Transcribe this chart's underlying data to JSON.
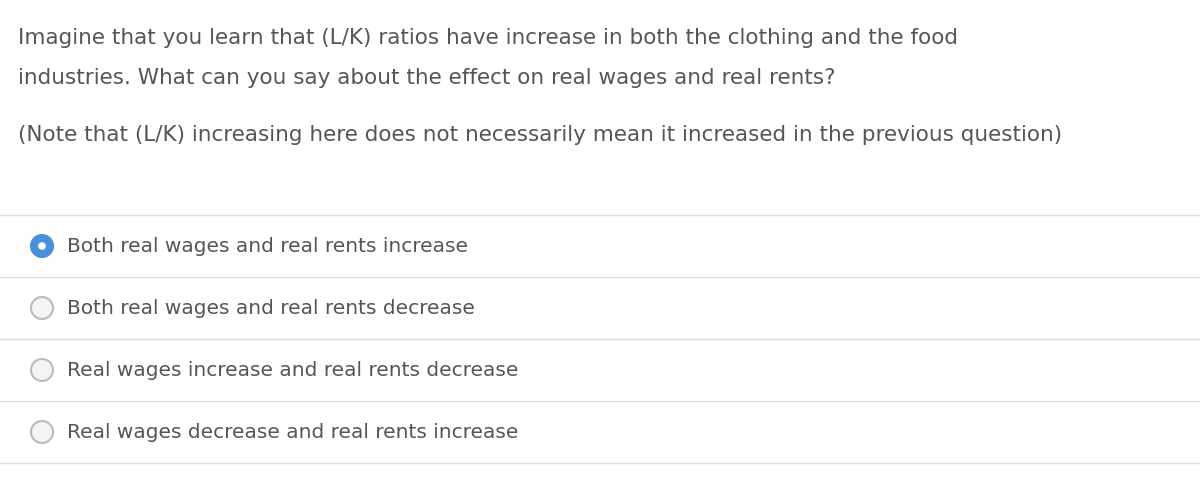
{
  "background_color": "#ffffff",
  "question_text_line1": "Imagine that you learn that (L/K) ratios have increase in both the clothing and the food",
  "question_text_line2": "industries. What can you say about the effect on real wages and real rents?",
  "note_text": "(Note that (L/K) increasing here does not necessarily mean it increased in the previous question)",
  "options": [
    "Both real wages and real rents increase",
    "Both real wages and real rents decrease",
    "Real wages increase and real rents decrease",
    "Real wages decrease and real rents increase"
  ],
  "selected_option": 0,
  "text_color": "#555555",
  "selected_circle_fill": "#4a90d9",
  "selected_circle_edge": "#4a90d9",
  "unselected_circle_fill": "#f5f5f5",
  "unselected_circle_edge": "#bbbbbb",
  "divider_color": "#dddddd",
  "font_size_question": 15.5,
  "font_size_options": 14.5,
  "font_size_note": 15.5,
  "fig_width": 12.0,
  "fig_height": 5.03,
  "dpi": 100
}
